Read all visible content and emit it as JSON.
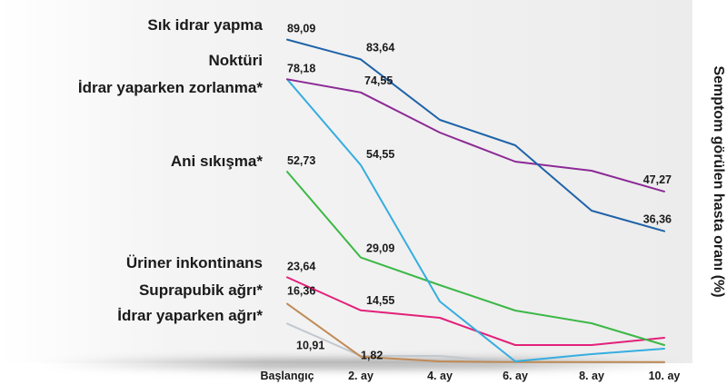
{
  "chart_data": {
    "type": "line",
    "title": "",
    "xlabel": "",
    "ylabel": "Semptom görülen hasta oranı (%)",
    "ylim": [
      0,
      95
    ],
    "grid": false,
    "legend": "left",
    "categories": [
      "Başlangıç",
      "2. ay",
      "4. ay",
      "6. ay",
      "8. ay",
      "10. ay"
    ],
    "series": [
      {
        "name": "Sık idrar yapma",
        "color": "#1f63a8",
        "values": [
          89.09,
          83.64,
          67,
          60,
          42,
          36.36
        ]
      },
      {
        "name": "Noktüri",
        "color": "#35ade0",
        "values": [
          78.18,
          54.55,
          17,
          0.5,
          2.5,
          4
        ]
      },
      {
        "name": "İdrar yaparken zorlanma*",
        "color": "#8c2a96",
        "values": [
          78.18,
          74.55,
          63.5,
          55.5,
          53,
          47.27
        ]
      },
      {
        "name": "Ani sıkışma*",
        "color": "#3cb846",
        "values": [
          52.73,
          29.09,
          21.5,
          14.5,
          11,
          5
        ]
      },
      {
        "name": "Üriner inkontinans",
        "color": "#e3217a",
        "values": [
          23.64,
          14.55,
          12.5,
          5,
          5,
          7
        ]
      },
      {
        "name": "Suprapubik ağrı*",
        "color": "#c08a55",
        "values": [
          16.36,
          1.82,
          0.5,
          0.3,
          0.3,
          0.3
        ]
      },
      {
        "name": "İdrar yaparken ağrı*",
        "color": "#c2c8cf",
        "values": [
          10.91,
          2,
          2,
          0.2,
          0.2,
          0.2
        ]
      }
    ],
    "data_labels": [
      {
        "series": 0,
        "index": 0,
        "text": "89,09"
      },
      {
        "series": 0,
        "index": 1,
        "text": "83,64"
      },
      {
        "series": 2,
        "index": 0,
        "text": "78,18"
      },
      {
        "series": 2,
        "index": 1,
        "text": "74,55"
      },
      {
        "series": 3,
        "index": 0,
        "text": "52,73"
      },
      {
        "series": 1,
        "index": 1,
        "text": "54,55"
      },
      {
        "series": 2,
        "index": 5,
        "text": "47,27"
      },
      {
        "series": 0,
        "index": 5,
        "text": "36,36"
      },
      {
        "series": 3,
        "index": 1,
        "text": "29,09"
      },
      {
        "series": 4,
        "index": 0,
        "text": "23,64"
      },
      {
        "series": 5,
        "index": 0,
        "text": "16,36"
      },
      {
        "series": 4,
        "index": 1,
        "text": "14,55"
      },
      {
        "series": 6,
        "index": 0,
        "text": "10,91"
      },
      {
        "series": 5,
        "index": 1,
        "text": "1,82"
      }
    ]
  }
}
